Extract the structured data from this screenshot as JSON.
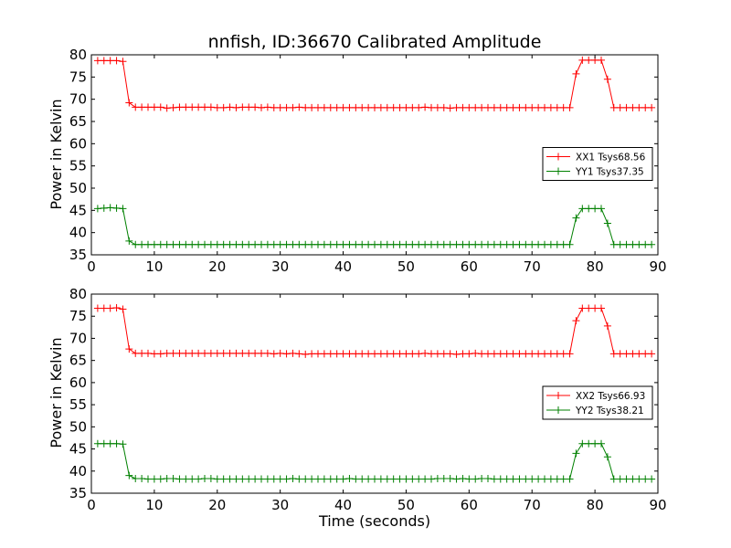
{
  "chart_data": [
    {
      "type": "line",
      "title": "nnfish, ID:36670 Calibrated Amplitude",
      "xlabel": "",
      "ylabel": "Power in Kelvin",
      "xlim": [
        0,
        90
      ],
      "ylim": [
        35,
        80
      ],
      "xticks": [
        "0",
        "10",
        "20",
        "30",
        "40",
        "50",
        "60",
        "70",
        "80",
        "90"
      ],
      "yticks": [
        "35",
        "40",
        "45",
        "50",
        "55",
        "60",
        "65",
        "70",
        "75",
        "80"
      ],
      "legend_position": "center-right",
      "grid": false,
      "series": [
        {
          "name": "XX1 Tsys68.56",
          "color": "#ff0000",
          "marker": "+",
          "x": [
            1,
            2,
            3,
            4,
            5,
            6,
            7,
            8,
            9,
            10,
            11,
            12,
            13,
            14,
            15,
            16,
            17,
            18,
            19,
            20,
            21,
            22,
            23,
            24,
            25,
            26,
            27,
            28,
            29,
            30,
            31,
            32,
            33,
            34,
            35,
            36,
            37,
            38,
            39,
            40,
            41,
            42,
            43,
            44,
            45,
            46,
            47,
            48,
            49,
            50,
            51,
            52,
            53,
            54,
            55,
            56,
            57,
            58,
            59,
            60,
            61,
            62,
            63,
            64,
            65,
            66,
            67,
            68,
            69,
            70,
            71,
            72,
            73,
            74,
            75,
            76,
            77,
            78,
            79,
            80,
            81,
            82,
            83,
            84,
            85,
            86,
            87,
            88,
            89
          ],
          "y": [
            78.7,
            78.7,
            78.7,
            78.7,
            78.5,
            69.2,
            68.2,
            68.2,
            68.2,
            68.2,
            68.2,
            68.0,
            68.1,
            68.2,
            68.2,
            68.2,
            68.2,
            68.2,
            68.2,
            68.1,
            68.1,
            68.2,
            68.1,
            68.2,
            68.2,
            68.2,
            68.1,
            68.2,
            68.1,
            68.1,
            68.1,
            68.1,
            68.2,
            68.1,
            68.1,
            68.1,
            68.1,
            68.1,
            68.1,
            68.1,
            68.1,
            68.1,
            68.1,
            68.1,
            68.1,
            68.1,
            68.1,
            68.1,
            68.1,
            68.1,
            68.1,
            68.1,
            68.2,
            68.1,
            68.1,
            68.1,
            68.0,
            68.1,
            68.1,
            68.1,
            68.1,
            68.1,
            68.1,
            68.1,
            68.1,
            68.1,
            68.1,
            68.1,
            68.1,
            68.1,
            68.1,
            68.1,
            68.1,
            68.1,
            68.1,
            68.1,
            75.7,
            78.8,
            78.8,
            78.8,
            78.8,
            74.5,
            68.1,
            68.1,
            68.1,
            68.1,
            68.1,
            68.1,
            68.1
          ]
        },
        {
          "name": "YY1 Tsys37.35",
          "color": "#008000",
          "marker": "+",
          "x": [
            1,
            2,
            3,
            4,
            5,
            6,
            7,
            8,
            9,
            10,
            11,
            12,
            13,
            14,
            15,
            16,
            17,
            18,
            19,
            20,
            21,
            22,
            23,
            24,
            25,
            26,
            27,
            28,
            29,
            30,
            31,
            32,
            33,
            34,
            35,
            36,
            37,
            38,
            39,
            40,
            41,
            42,
            43,
            44,
            45,
            46,
            47,
            48,
            49,
            50,
            51,
            52,
            53,
            54,
            55,
            56,
            57,
            58,
            59,
            60,
            61,
            62,
            63,
            64,
            65,
            66,
            67,
            68,
            69,
            70,
            71,
            72,
            73,
            74,
            75,
            76,
            77,
            78,
            79,
            80,
            81,
            82,
            83,
            84,
            85,
            86,
            87,
            88,
            89
          ],
          "y": [
            45.4,
            45.5,
            45.6,
            45.5,
            45.4,
            38.1,
            37.3,
            37.3,
            37.3,
            37.3,
            37.3,
            37.3,
            37.3,
            37.3,
            37.3,
            37.3,
            37.3,
            37.3,
            37.3,
            37.3,
            37.3,
            37.3,
            37.3,
            37.3,
            37.3,
            37.3,
            37.3,
            37.3,
            37.3,
            37.3,
            37.3,
            37.3,
            37.3,
            37.3,
            37.3,
            37.3,
            37.3,
            37.3,
            37.3,
            37.3,
            37.3,
            37.3,
            37.3,
            37.3,
            37.3,
            37.3,
            37.3,
            37.3,
            37.3,
            37.3,
            37.3,
            37.3,
            37.3,
            37.3,
            37.3,
            37.3,
            37.3,
            37.3,
            37.3,
            37.3,
            37.3,
            37.3,
            37.3,
            37.3,
            37.3,
            37.3,
            37.3,
            37.3,
            37.3,
            37.3,
            37.3,
            37.3,
            37.3,
            37.3,
            37.3,
            37.3,
            43.3,
            45.4,
            45.4,
            45.4,
            45.4,
            42.1,
            37.3,
            37.3,
            37.3,
            37.3,
            37.3,
            37.3,
            37.3
          ]
        }
      ]
    },
    {
      "type": "line",
      "title": "",
      "xlabel": "Time (seconds)",
      "ylabel": "Power in Kelvin",
      "xlim": [
        0,
        90
      ],
      "ylim": [
        35,
        80
      ],
      "xticks": [
        "0",
        "10",
        "20",
        "30",
        "40",
        "50",
        "60",
        "70",
        "80",
        "90"
      ],
      "yticks": [
        "35",
        "40",
        "45",
        "50",
        "55",
        "60",
        "65",
        "70",
        "75",
        "80"
      ],
      "legend_position": "center-right",
      "grid": false,
      "series": [
        {
          "name": "XX2 Tsys66.93",
          "color": "#ff0000",
          "marker": "+",
          "x": [
            1,
            2,
            3,
            4,
            5,
            6,
            7,
            8,
            9,
            10,
            11,
            12,
            13,
            14,
            15,
            16,
            17,
            18,
            19,
            20,
            21,
            22,
            23,
            24,
            25,
            26,
            27,
            28,
            29,
            30,
            31,
            32,
            33,
            34,
            35,
            36,
            37,
            38,
            39,
            40,
            41,
            42,
            43,
            44,
            45,
            46,
            47,
            48,
            49,
            50,
            51,
            52,
            53,
            54,
            55,
            56,
            57,
            58,
            59,
            60,
            61,
            62,
            63,
            64,
            65,
            66,
            67,
            68,
            69,
            70,
            71,
            72,
            73,
            74,
            75,
            76,
            77,
            78,
            79,
            80,
            81,
            82,
            83,
            84,
            85,
            86,
            87,
            88,
            89
          ],
          "y": [
            76.8,
            76.8,
            76.8,
            76.9,
            76.6,
            67.6,
            66.6,
            66.6,
            66.6,
            66.5,
            66.5,
            66.6,
            66.6,
            66.6,
            66.6,
            66.6,
            66.6,
            66.6,
            66.6,
            66.6,
            66.6,
            66.6,
            66.6,
            66.6,
            66.6,
            66.6,
            66.6,
            66.6,
            66.5,
            66.6,
            66.5,
            66.6,
            66.5,
            66.4,
            66.5,
            66.5,
            66.5,
            66.5,
            66.5,
            66.5,
            66.5,
            66.5,
            66.5,
            66.5,
            66.5,
            66.5,
            66.5,
            66.5,
            66.5,
            66.5,
            66.5,
            66.5,
            66.6,
            66.5,
            66.5,
            66.5,
            66.5,
            66.4,
            66.5,
            66.5,
            66.6,
            66.5,
            66.5,
            66.5,
            66.5,
            66.5,
            66.5,
            66.5,
            66.5,
            66.5,
            66.5,
            66.5,
            66.5,
            66.5,
            66.5,
            66.5,
            74.0,
            76.8,
            76.8,
            76.8,
            76.8,
            72.8,
            66.5,
            66.5,
            66.5,
            66.5,
            66.5,
            66.5,
            66.5
          ]
        },
        {
          "name": "YY2 Tsys38.21",
          "color": "#008000",
          "marker": "+",
          "x": [
            1,
            2,
            3,
            4,
            5,
            6,
            7,
            8,
            9,
            10,
            11,
            12,
            13,
            14,
            15,
            16,
            17,
            18,
            19,
            20,
            21,
            22,
            23,
            24,
            25,
            26,
            27,
            28,
            29,
            30,
            31,
            32,
            33,
            34,
            35,
            36,
            37,
            38,
            39,
            40,
            41,
            42,
            43,
            44,
            45,
            46,
            47,
            48,
            49,
            50,
            51,
            52,
            53,
            54,
            55,
            56,
            57,
            58,
            59,
            60,
            61,
            62,
            63,
            64,
            65,
            66,
            67,
            68,
            69,
            70,
            71,
            72,
            73,
            74,
            75,
            76,
            77,
            78,
            79,
            80,
            81,
            82,
            83,
            84,
            85,
            86,
            87,
            88,
            89
          ],
          "y": [
            46.2,
            46.2,
            46.2,
            46.2,
            46.1,
            39.0,
            38.3,
            38.3,
            38.2,
            38.2,
            38.2,
            38.3,
            38.3,
            38.2,
            38.2,
            38.2,
            38.2,
            38.3,
            38.3,
            38.2,
            38.2,
            38.2,
            38.2,
            38.2,
            38.2,
            38.2,
            38.2,
            38.2,
            38.2,
            38.2,
            38.2,
            38.3,
            38.2,
            38.2,
            38.2,
            38.2,
            38.2,
            38.2,
            38.2,
            38.2,
            38.3,
            38.2,
            38.2,
            38.2,
            38.2,
            38.2,
            38.2,
            38.2,
            38.2,
            38.2,
            38.2,
            38.2,
            38.2,
            38.2,
            38.3,
            38.3,
            38.3,
            38.2,
            38.3,
            38.2,
            38.2,
            38.3,
            38.3,
            38.2,
            38.2,
            38.2,
            38.2,
            38.2,
            38.2,
            38.2,
            38.2,
            38.2,
            38.2,
            38.2,
            38.2,
            38.2,
            44.0,
            46.2,
            46.2,
            46.2,
            46.2,
            43.2,
            38.2,
            38.2,
            38.2,
            38.2,
            38.2,
            38.2,
            38.2
          ]
        }
      ]
    }
  ]
}
